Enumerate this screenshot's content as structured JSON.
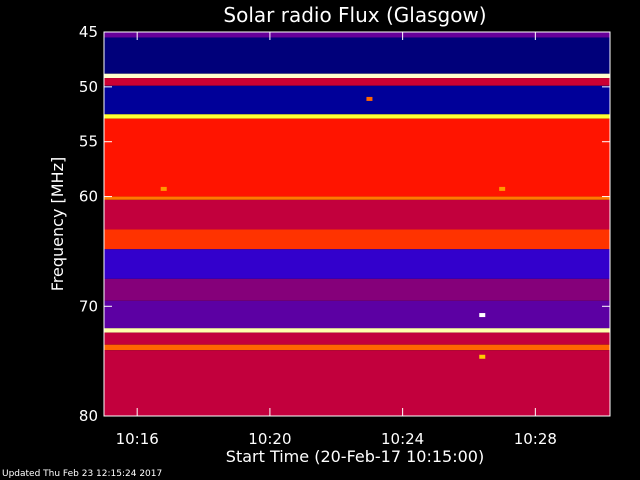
{
  "chart_data": {
    "type": "heatmap",
    "title": "Solar radio Flux (Glasgow)",
    "ylabel": "Frequency [MHz]",
    "xlabel": "Start Time (20-Feb-17 10:15:00)",
    "ylim": [
      45,
      80
    ],
    "y_inverted": true,
    "yticks": [
      45,
      50,
      55,
      60,
      70,
      80
    ],
    "xlim_minutes": [
      0,
      15.25
    ],
    "xticks": [
      {
        "minute": 1,
        "label": "10:16"
      },
      {
        "minute": 5,
        "label": "10:20"
      },
      {
        "minute": 9,
        "label": "10:24"
      },
      {
        "minute": 13,
        "label": "10:28"
      }
    ],
    "colormap": [
      "#000000",
      "#0000ff",
      "#ff0000",
      "#ffff00",
      "#ffffff"
    ],
    "frequency_bands": [
      {
        "from": 45.0,
        "to": 45.5,
        "level": 0.35
      },
      {
        "from": 45.5,
        "to": 48.8,
        "level": 0.12
      },
      {
        "from": 48.8,
        "to": 49.2,
        "level": 0.95
      },
      {
        "from": 49.2,
        "to": 49.9,
        "level": 0.45
      },
      {
        "from": 49.9,
        "to": 52.5,
        "level": 0.15
      },
      {
        "from": 52.5,
        "to": 52.9,
        "level": 0.8
      },
      {
        "from": 52.9,
        "to": 60.0,
        "level": 0.52
      },
      {
        "from": 60.0,
        "to": 60.3,
        "level": 0.62
      },
      {
        "from": 60.3,
        "to": 63.0,
        "level": 0.44
      },
      {
        "from": 63.0,
        "to": 64.8,
        "level": 0.55
      },
      {
        "from": 64.8,
        "to": 67.5,
        "level": 0.3
      },
      {
        "from": 67.5,
        "to": 69.5,
        "level": 0.38
      },
      {
        "from": 69.5,
        "to": 72.0,
        "level": 0.34
      },
      {
        "from": 72.0,
        "to": 72.4,
        "level": 0.92
      },
      {
        "from": 72.4,
        "to": 73.5,
        "level": 0.44
      },
      {
        "from": 73.5,
        "to": 74.0,
        "level": 0.6
      },
      {
        "from": 74.0,
        "to": 80.0,
        "level": 0.44
      }
    ],
    "events": [
      {
        "minute": 1.8,
        "freq": 59.3,
        "level": 0.65
      },
      {
        "minute": 12.0,
        "freq": 59.3,
        "level": 0.65
      },
      {
        "minute": 8.0,
        "freq": 51.1,
        "level": 0.6
      },
      {
        "minute": 11.4,
        "freq": 70.8,
        "level": 1.0
      },
      {
        "minute": 11.4,
        "freq": 74.6,
        "level": 0.7
      }
    ]
  },
  "footer": {
    "updated": "Updated Thu Feb 23 12:15:24 2017"
  }
}
